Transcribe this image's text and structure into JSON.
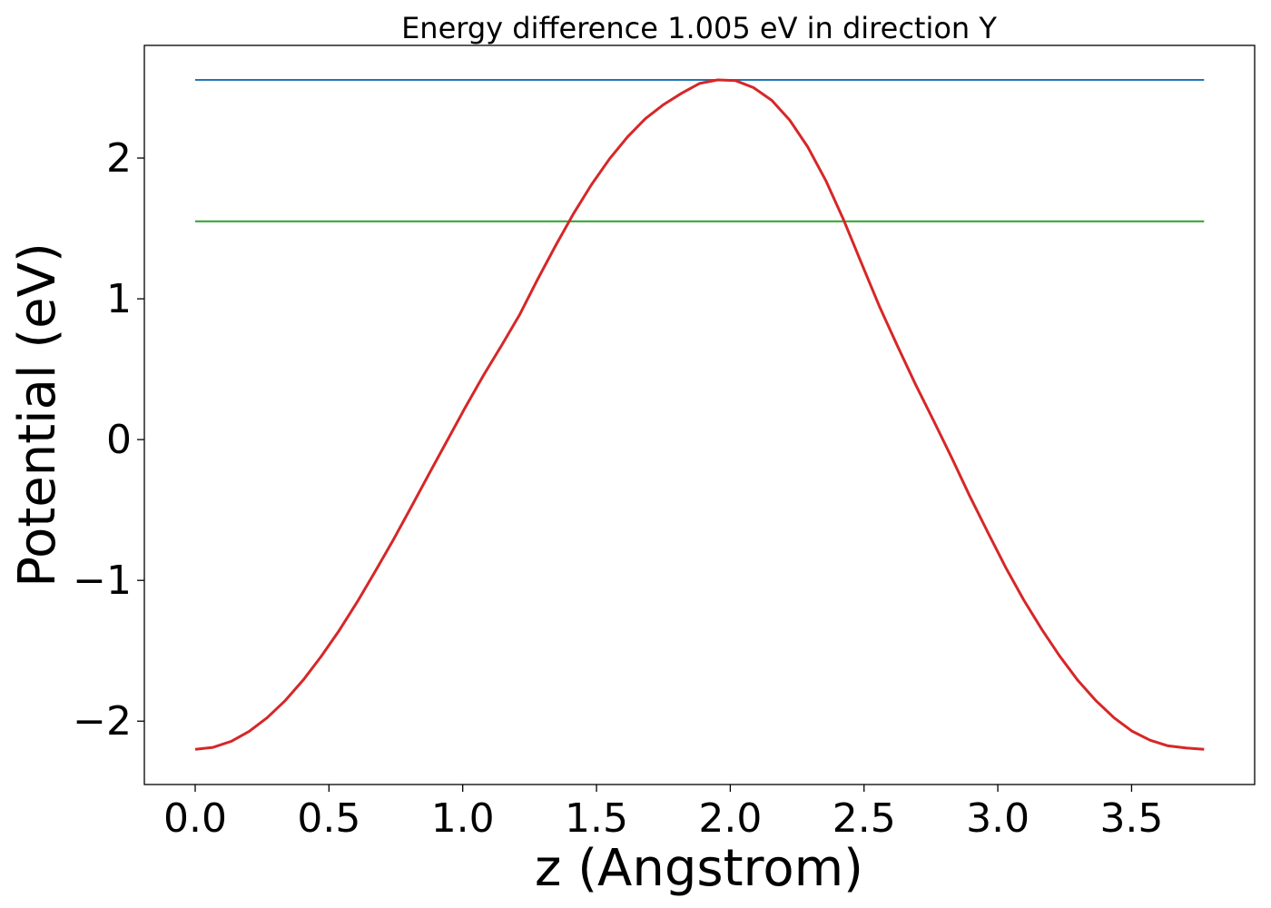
{
  "chart_data": {
    "type": "line",
    "title": "Energy difference 1.005 eV in direction Y",
    "xlabel": "z (Angstrom)",
    "ylabel": "Potential (eV)",
    "xlim": [
      -0.19,
      3.96
    ],
    "ylim": [
      -2.45,
      2.8
    ],
    "xticks": [
      0.0,
      0.5,
      1.0,
      1.5,
      2.0,
      2.5,
      3.0,
      3.5
    ],
    "xtick_labels": [
      "0.0",
      "0.5",
      "1.0",
      "1.5",
      "2.0",
      "2.5",
      "3.0",
      "3.5"
    ],
    "yticks": [
      -2,
      -1,
      0,
      1,
      2
    ],
    "ytick_labels": [
      "−2",
      "−1",
      "0",
      "1",
      "2"
    ],
    "grid": false,
    "legend": "none",
    "series": [
      {
        "color": "#d62728",
        "kind": "line",
        "x": [
          0.0,
          0.067,
          0.135,
          0.202,
          0.269,
          0.337,
          0.404,
          0.471,
          0.539,
          0.606,
          0.673,
          0.741,
          0.808,
          0.875,
          0.943,
          1.01,
          1.077,
          1.145,
          1.212,
          1.279,
          1.347,
          1.414,
          1.481,
          1.549,
          1.616,
          1.683,
          1.751,
          1.818,
          1.885,
          1.953,
          2.02,
          2.087,
          2.155,
          2.222,
          2.289,
          2.357,
          2.424,
          2.491,
          2.559,
          2.626,
          2.693,
          2.761,
          2.828,
          2.895,
          2.963,
          3.03,
          3.097,
          3.165,
          3.232,
          3.299,
          3.367,
          3.434,
          3.501,
          3.569,
          3.636,
          3.703,
          3.771
        ],
        "y": [
          -2.2,
          -2.186,
          -2.143,
          -2.072,
          -1.975,
          -1.853,
          -1.707,
          -1.54,
          -1.354,
          -1.152,
          -0.936,
          -0.71,
          -0.477,
          -0.24,
          -0.003,
          0.23,
          0.455,
          0.668,
          0.885,
          1.135,
          1.378,
          1.605,
          1.81,
          1.995,
          2.15,
          2.28,
          2.38,
          2.46,
          2.53,
          2.555,
          2.55,
          2.5,
          2.41,
          2.27,
          2.08,
          1.84,
          1.56,
          1.25,
          0.94,
          0.66,
          0.39,
          0.13,
          -0.13,
          -0.4,
          -0.66,
          -0.91,
          -1.14,
          -1.35,
          -1.54,
          -1.71,
          -1.855,
          -1.975,
          -2.07,
          -2.135,
          -2.175,
          -2.19,
          -2.2
        ]
      },
      {
        "color": "#1f77b4",
        "kind": "hline",
        "y": 2.555,
        "x": [
          0.0,
          3.771
        ]
      },
      {
        "color": "#2ca02c",
        "kind": "hline",
        "y": 1.55,
        "x": [
          0.0,
          3.771
        ]
      }
    ]
  }
}
